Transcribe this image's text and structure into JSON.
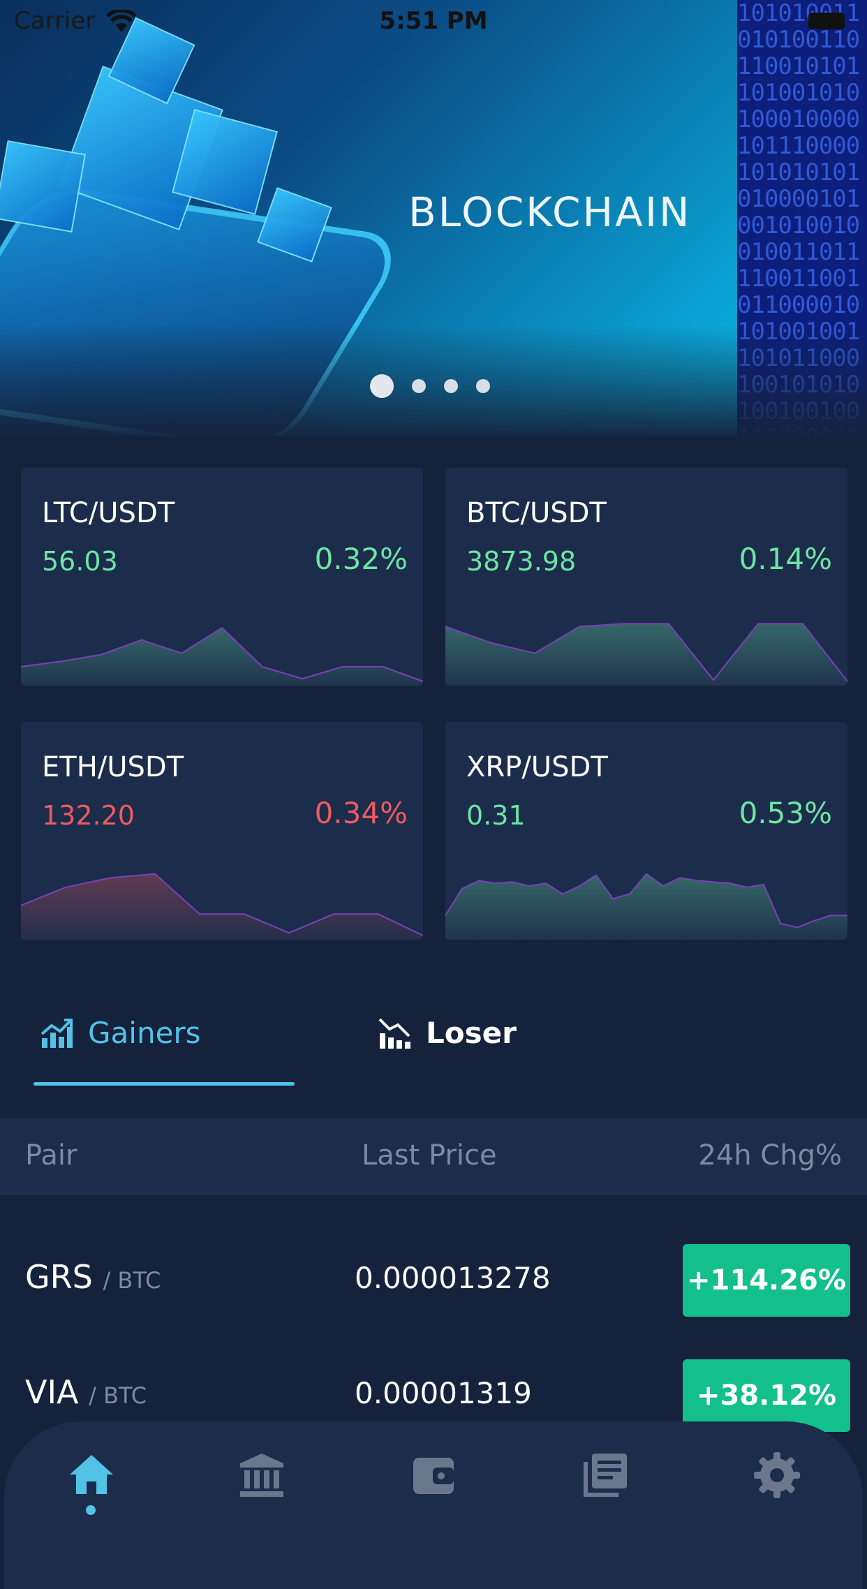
{
  "status_bar": {
    "carrier": "Carrier",
    "time": "5:51 PM"
  },
  "banner": {
    "title": "BLOCKCHAIN",
    "binary_text": "1010100110101001101100101011010010101000100001011100001010101010100001010010100100100110111100110010110000101010010011010110001001010101001001001100000001100110",
    "slide_count": 4,
    "active_slide": 0
  },
  "markets": [
    {
      "pair": "LTC/USDT",
      "price": "56.03",
      "change": "0.32%",
      "trend": "up",
      "spark": [
        0.22,
        0.3,
        0.4,
        0.62,
        0.42,
        0.8,
        0.22,
        0.04,
        0.22,
        0.22,
        0.0
      ],
      "color": "#6ee4a4"
    },
    {
      "pair": "BTC/USDT",
      "price": "3873.98",
      "change": "0.14%",
      "trend": "up",
      "spark": [
        0.82,
        0.58,
        0.42,
        0.82,
        0.86,
        0.86,
        0.02,
        0.86,
        0.86,
        0.0
      ],
      "color": "#6ee4a4"
    },
    {
      "pair": "ETH/USDT",
      "price": "132.20",
      "change": "0.34%",
      "trend": "down",
      "spark": [
        0.45,
        0.72,
        0.86,
        0.92,
        0.32,
        0.32,
        0.04,
        0.32,
        0.32,
        0.0
      ],
      "color": "#ee5a60"
    },
    {
      "pair": "XRP/USDT",
      "price": "0.31",
      "change": "0.53%",
      "trend": "up",
      "spark": [
        0.3,
        0.7,
        0.82,
        0.78,
        0.8,
        0.74,
        0.78,
        0.62,
        0.74,
        0.9,
        0.55,
        0.62,
        0.92,
        0.74,
        0.86,
        0.82,
        0.8,
        0.78,
        0.72,
        0.76,
        0.18,
        0.12,
        0.22,
        0.3,
        0.3
      ],
      "color": "#6ee4a4"
    }
  ],
  "tabs": [
    {
      "label": "Gainers",
      "active": true
    },
    {
      "label": "Loser",
      "active": false
    }
  ],
  "table": {
    "headers": [
      "Pair",
      "Last Price",
      "24h Chg%"
    ],
    "rows": [
      {
        "symbol": "GRS",
        "base": "/ BTC",
        "last": "0.000013278",
        "change": "+114.26%"
      },
      {
        "symbol": "VIA",
        "base": "/ BTC",
        "last": "0.00001319",
        "change": "+38.12%"
      }
    ]
  },
  "bottom_nav": [
    {
      "name": "home",
      "icon": "home-icon",
      "active": true
    },
    {
      "name": "markets",
      "icon": "bank-icon",
      "active": false
    },
    {
      "name": "wallet",
      "icon": "wallet-icon",
      "active": false
    },
    {
      "name": "news",
      "icon": "news-icon",
      "active": false
    },
    {
      "name": "settings",
      "icon": "gear-icon",
      "active": false
    }
  ],
  "colors": {
    "background": "#15223c",
    "card": "#1c2d4b",
    "accent": "#52c2e6",
    "positive": "#6ee4a4",
    "negative": "#ee5a60",
    "gain_badge": "#13bf8a",
    "muted": "#7d8aa3"
  }
}
